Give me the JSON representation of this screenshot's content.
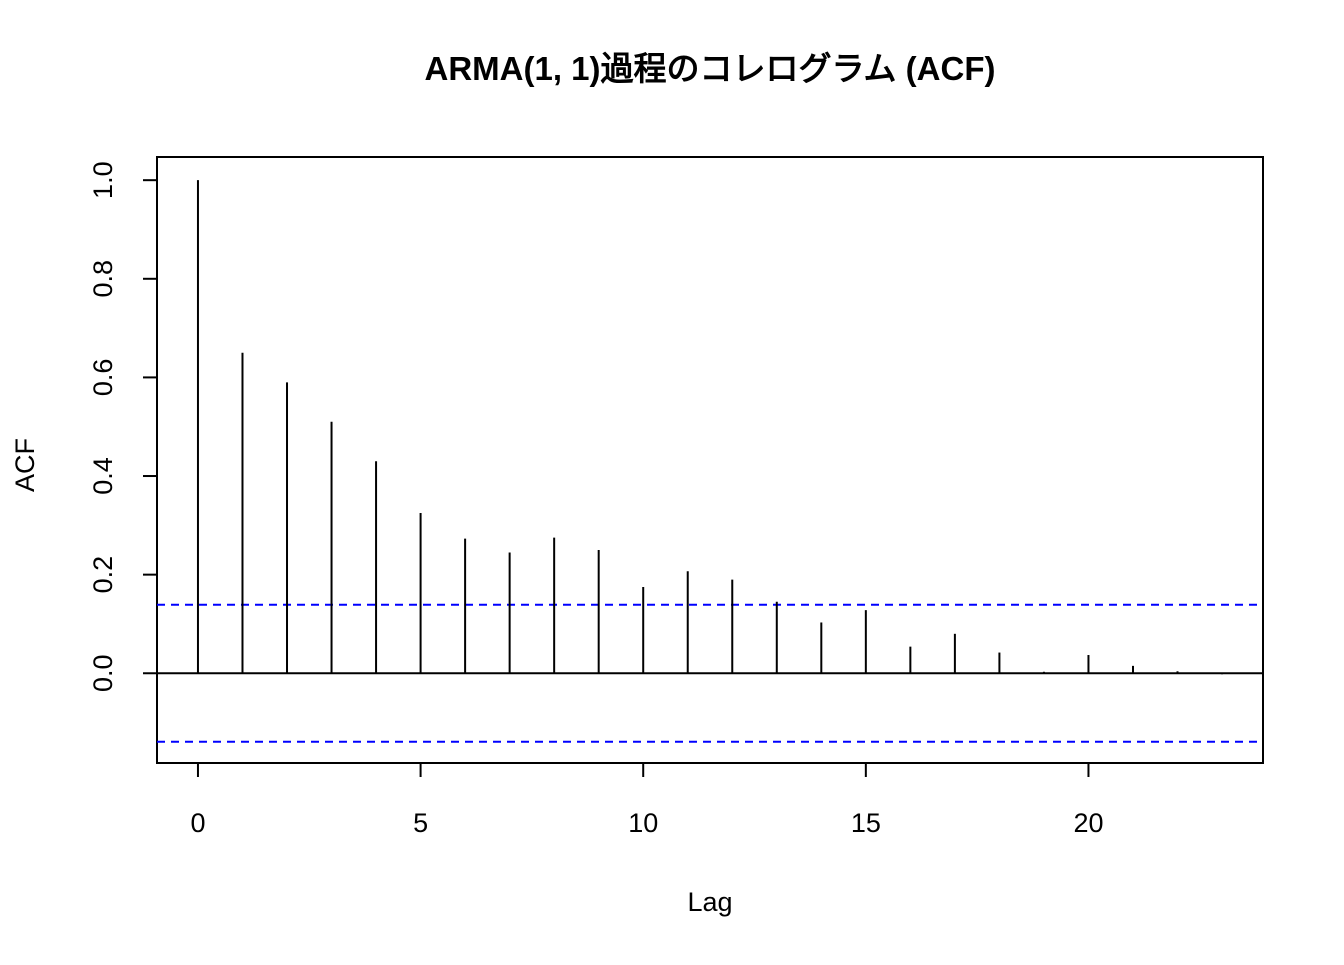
{
  "chart_data": {
    "type": "bar",
    "title": "ARMA(1, 1)過程のコレログラム (ACF)",
    "xlabel": "Lag",
    "ylabel": "ACF",
    "x": [
      0,
      1,
      2,
      3,
      4,
      5,
      6,
      7,
      8,
      9,
      10,
      11,
      12,
      13,
      14,
      15,
      16,
      17,
      18,
      19,
      20,
      21,
      22,
      23
    ],
    "values": [
      1.0,
      0.65,
      0.59,
      0.51,
      0.43,
      0.325,
      0.273,
      0.245,
      0.275,
      0.25,
      0.175,
      0.207,
      0.19,
      0.145,
      0.103,
      0.128,
      0.054,
      0.08,
      0.042,
      0.003,
      0.037,
      0.015,
      0.004,
      -0.002
    ],
    "xlim": [
      -0.92,
      23.92
    ],
    "ylim": [
      -0.182,
      1.047
    ],
    "xticks": [
      0,
      5,
      10,
      15,
      20
    ],
    "xtick_labels": [
      "0",
      "5",
      "10",
      "15",
      "20"
    ],
    "yticks": [
      0.0,
      0.2,
      0.4,
      0.6,
      0.8,
      1.0
    ],
    "ytick_labels": [
      "0.0",
      "0.2",
      "0.4",
      "0.6",
      "0.8",
      "1.0"
    ],
    "confidence_band": [
      0.139,
      -0.139
    ],
    "zero_line": 0,
    "grid": false,
    "colors": {
      "bars": "#000000",
      "confidence": "#0000ff",
      "axes": "#000000"
    }
  }
}
